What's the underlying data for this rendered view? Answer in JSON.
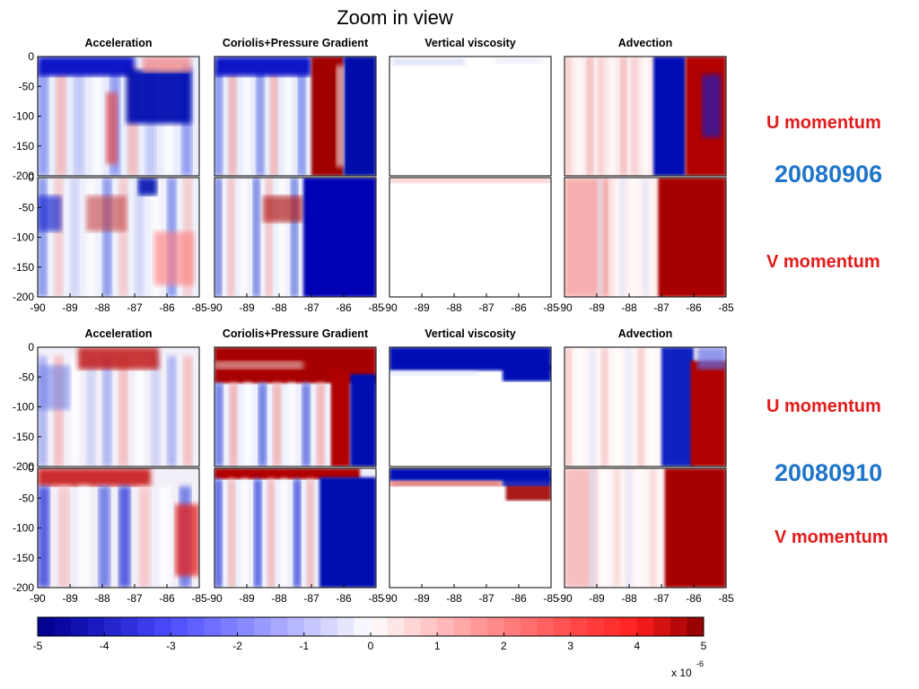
{
  "title": "Zoom in view",
  "side_labels": {
    "u_momentum": "U momentum",
    "v_momentum": "V momentum",
    "date_1": "20080906",
    "date_2": "20080910"
  },
  "chart_data": [
    {
      "type": "heatmap",
      "date": "20080906",
      "columns": [
        "Acceleration",
        "Coriolis+Pressure Gradient",
        "Vertical viscosity",
        "Advection"
      ],
      "rows": [
        "U momentum",
        "V momentum"
      ],
      "x_ticks": [
        -90,
        -89,
        -88,
        -87,
        -86,
        -85
      ],
      "xlim": [
        -90,
        -85
      ],
      "y_ticks": [
        0,
        -50,
        -100,
        -150,
        -200
      ],
      "ylim": [
        -200,
        0
      ]
    },
    {
      "type": "heatmap",
      "date": "20080910",
      "columns": [
        "Acceleration",
        "Coriolis+Pressure Gradient",
        "Vertical viscosity",
        "Advection"
      ],
      "rows": [
        "U momentum",
        "V momentum"
      ],
      "x_ticks": [
        -90,
        -89,
        -88,
        -87,
        -86,
        -85
      ],
      "xlim": [
        -90,
        -85
      ],
      "y_ticks": [
        0,
        -50,
        -100,
        -150,
        -200
      ],
      "ylim": [
        -200,
        0
      ]
    }
  ],
  "colorbar": {
    "ticks": [
      -5,
      -4,
      -3,
      -2,
      -1,
      0,
      1,
      2,
      3,
      4,
      5
    ],
    "range": [
      -5,
      5
    ],
    "exponent_prefix": "x 10",
    "exponent": "-6",
    "colormap": "blue-white-red",
    "min_color": "#00008c",
    "mid_color": "#ffffff",
    "max_color": "#8b0000"
  }
}
